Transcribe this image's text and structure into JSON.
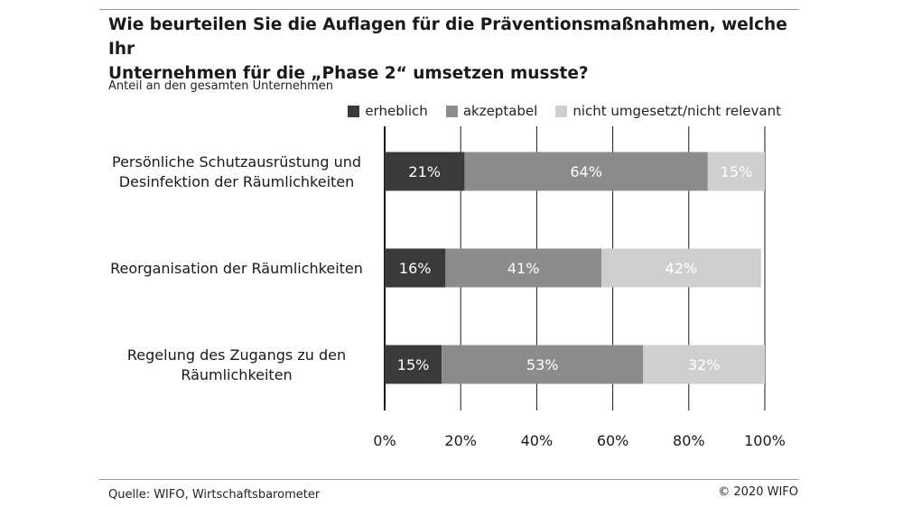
{
  "header": {
    "title_line1": "Wie beurteilen Sie die Auflagen für die Präventionsmaßnahmen, welche Ihr",
    "title_line2": "Unternehmen für die „Phase 2“ umsetzen musste?",
    "subtitle": "Anteil an den gesamten Unternehmen"
  },
  "footer": {
    "source": "Quelle: WIFO, Wirtschaftsbarometer",
    "copyright": "© 2020 WIFO"
  },
  "colors": {
    "erheblich": "#3a3a3a",
    "akzeptabel": "#8c8c8c",
    "nicht_relevant": "#cfcfcf",
    "grid": "#1a1a1a",
    "rule": "#9a9a9a"
  },
  "chart_data": {
    "type": "bar",
    "orientation": "horizontal",
    "stacked": true,
    "title": "Wie beurteilen Sie die Auflagen für die Präventionsmaßnahmen, welche Ihr Unternehmen für die „Phase 2“ umsetzen musste?",
    "subtitle": "Anteil an den gesamten Unternehmen",
    "categories": [
      [
        "Persönliche Schutzausrüstung und",
        "Desinfektion der Räumlichkeiten"
      ],
      [
        "Reorganisation der Räumlichkeiten"
      ],
      [
        "Regelung des Zugangs zu den",
        "Räumlichkeiten"
      ]
    ],
    "series": [
      {
        "name": "erheblich",
        "values": [
          21,
          16,
          15
        ],
        "labels": [
          "21%",
          "16%",
          "15%"
        ]
      },
      {
        "name": "akzeptabel",
        "values": [
          64,
          41,
          53
        ],
        "labels": [
          "64%",
          "41%",
          "53%"
        ]
      },
      {
        "name": "nicht umgesetzt/nicht relevant",
        "values": [
          15,
          42,
          32
        ],
        "labels": [
          "15%",
          "42%",
          "32%"
        ]
      }
    ],
    "xlim": [
      0,
      100
    ],
    "xticks": [
      0,
      20,
      40,
      60,
      80,
      100
    ],
    "xtick_labels": [
      "0%",
      "20%",
      "40%",
      "60%",
      "80%",
      "100%"
    ],
    "grid": true,
    "legend": "top-right"
  }
}
